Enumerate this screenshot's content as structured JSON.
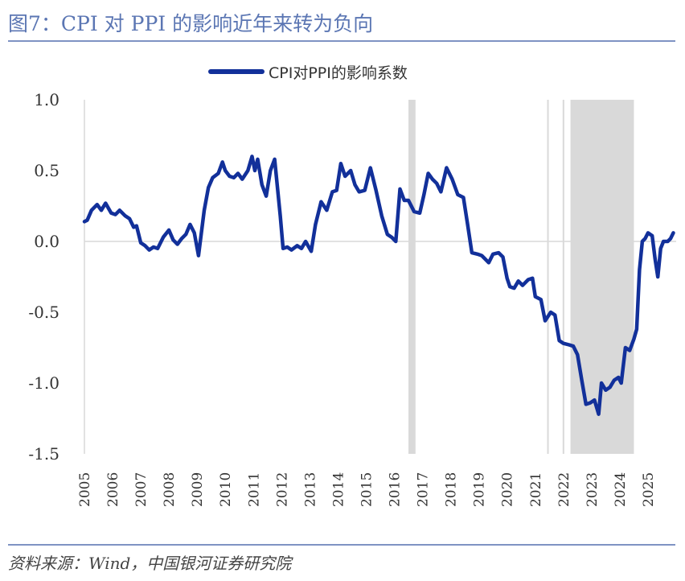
{
  "figure": {
    "title": "图7：CPI 对 PPI 的影响近年来转为负向",
    "source": "资料来源：Wind，中国银河证券研究院"
  },
  "colors": {
    "title": "#5b76b3",
    "rule": "#7f93c3",
    "series": "#12309a",
    "shade": "#d9d9d9",
    "axis": "#d9d9d9"
  },
  "chart_data": {
    "type": "line",
    "title": "",
    "xlabel": "",
    "ylabel": "",
    "legend_position": "top-center",
    "xlim": [
      2005,
      2026
    ],
    "ylim": [
      -1.5,
      1.0
    ],
    "yticks": [
      1.0,
      0.5,
      0.0,
      -0.5,
      -1.0,
      -1.5
    ],
    "ytick_labels": [
      "1.0",
      "0.5",
      "0.0",
      "-0.5",
      "-1.0",
      "-1.5"
    ],
    "xtick_labels": [
      "2005",
      "2006",
      "2007",
      "2008",
      "2009",
      "2010",
      "2011",
      "2012",
      "2013",
      "2014",
      "2015",
      "2016",
      "2017",
      "2018",
      "2019",
      "2020",
      "2021",
      "2022",
      "2023",
      "2024",
      "2025"
    ],
    "shaded_periods": [
      {
        "start": 2016.5,
        "end": 2016.75
      },
      {
        "start": 2022.25,
        "end": 2024.5
      }
    ],
    "vertical_lines": [
      2021.45,
      2022.0
    ],
    "series": [
      {
        "name": "CPI对PPI的影响系数",
        "x": [
          2005.0,
          2005.1,
          2005.25,
          2005.45,
          2005.6,
          2005.75,
          2005.95,
          2006.1,
          2006.25,
          2006.45,
          2006.6,
          2006.75,
          2006.85,
          2007.0,
          2007.15,
          2007.3,
          2007.45,
          2007.6,
          2007.8,
          2008.0,
          2008.15,
          2008.3,
          2008.45,
          2008.6,
          2008.75,
          2008.9,
          2009.05,
          2009.25,
          2009.4,
          2009.55,
          2009.75,
          2009.9,
          2010.0,
          2010.15,
          2010.3,
          2010.45,
          2010.6,
          2010.8,
          2010.95,
          2011.05,
          2011.15,
          2011.3,
          2011.45,
          2011.6,
          2011.75,
          2011.95,
          2012.05,
          2012.2,
          2012.35,
          2012.55,
          2012.7,
          2012.85,
          2013.05,
          2013.2,
          2013.4,
          2013.6,
          2013.8,
          2013.95,
          2014.1,
          2014.25,
          2014.45,
          2014.6,
          2014.75,
          2014.95,
          2015.15,
          2015.35,
          2015.55,
          2015.75,
          2015.9,
          2016.05,
          2016.2,
          2016.35,
          2016.5,
          2016.7,
          2016.9,
          2017.05,
          2017.2,
          2017.35,
          2017.5,
          2017.65,
          2017.85,
          2018.05,
          2018.25,
          2018.45,
          2018.6,
          2018.75,
          2018.95,
          2019.1,
          2019.2,
          2019.35,
          2019.5,
          2019.7,
          2019.85,
          2020.0,
          2020.1,
          2020.25,
          2020.4,
          2020.55,
          2020.75,
          2020.9,
          2021.0,
          2021.2,
          2021.35,
          2021.55,
          2021.7,
          2021.85,
          2022.0,
          2022.2,
          2022.35,
          2022.5,
          2022.65,
          2022.8,
          2022.95,
          2023.1,
          2023.25,
          2023.35,
          2023.5,
          2023.65,
          2023.8,
          2023.95,
          2024.05,
          2024.2,
          2024.35,
          2024.5,
          2024.6,
          2024.7,
          2024.8,
          2024.9,
          2025.0,
          2025.15,
          2025.25,
          2025.35,
          2025.45,
          2025.55,
          2025.7,
          2025.8,
          2025.9
        ],
        "values": [
          0.14,
          0.15,
          0.22,
          0.26,
          0.22,
          0.27,
          0.2,
          0.19,
          0.22,
          0.18,
          0.16,
          0.1,
          0.11,
          -0.01,
          -0.03,
          -0.06,
          -0.04,
          -0.05,
          0.03,
          0.08,
          0.01,
          -0.02,
          0.02,
          0.05,
          0.12,
          0.06,
          -0.1,
          0.22,
          0.38,
          0.45,
          0.48,
          0.56,
          0.5,
          0.46,
          0.45,
          0.48,
          0.44,
          0.5,
          0.6,
          0.5,
          0.58,
          0.4,
          0.32,
          0.5,
          0.58,
          0.18,
          -0.05,
          -0.04,
          -0.06,
          -0.03,
          -0.05,
          0.0,
          -0.07,
          0.12,
          0.28,
          0.22,
          0.35,
          0.36,
          0.55,
          0.46,
          0.5,
          0.4,
          0.35,
          0.36,
          0.52,
          0.36,
          0.18,
          0.05,
          0.03,
          0.0,
          0.37,
          0.29,
          0.29,
          0.21,
          0.2,
          0.33,
          0.48,
          0.44,
          0.41,
          0.35,
          0.52,
          0.44,
          0.33,
          0.31,
          0.12,
          -0.08,
          -0.09,
          -0.1,
          -0.12,
          -0.15,
          -0.09,
          -0.08,
          -0.11,
          -0.26,
          -0.32,
          -0.33,
          -0.28,
          -0.31,
          -0.27,
          -0.26,
          -0.39,
          -0.41,
          -0.56,
          -0.5,
          -0.52,
          -0.7,
          -0.72,
          -0.73,
          -0.74,
          -0.8,
          -0.98,
          -1.15,
          -1.14,
          -1.12,
          -1.22,
          -1.0,
          -1.05,
          -1.03,
          -0.98,
          -0.96,
          -1.0,
          -0.75,
          -0.77,
          -0.69,
          -0.62,
          -0.2,
          0.0,
          0.02,
          0.06,
          0.04,
          -0.12,
          -0.25,
          -0.05,
          -0.0,
          0.0,
          0.02,
          0.06
        ]
      }
    ]
  }
}
